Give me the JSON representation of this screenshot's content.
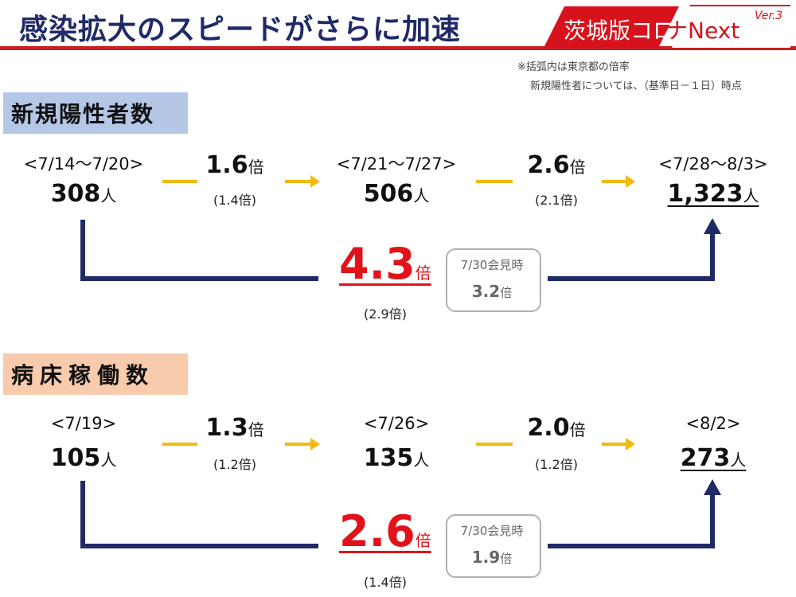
{
  "header": {
    "title": "感染拡大のスピードがさらに加速",
    "badge_red": "茨城版コロ",
    "badge_white": "ナNext",
    "badge_ver": "Ver.3",
    "note_line1": "※括弧内は東京都の倍率",
    "note_line2": "新規陽性者については、（基準日－１日）時点"
  },
  "colors": {
    "navy": "#1f2a66",
    "red": "#e3121a",
    "yellow": "#f2b90f",
    "sec1_bg": "#b4c7e7",
    "sec2_bg": "#f8cbad"
  },
  "sections": [
    {
      "label": "新規陽性者数",
      "periods": [
        "<7/14～7/20>",
        "<7/21～7/27>",
        "<7/28～8/3>"
      ],
      "values": [
        "308",
        "506",
        "1,323"
      ],
      "unit_person": "人",
      "ratios": [
        "1.6",
        "2.6"
      ],
      "ratio_unit": "倍",
      "ratio_subs": [
        "(1.4倍)",
        "(2.1倍)"
      ],
      "total_ratio": "4.3",
      "total_sub": "(2.9倍)",
      "bracket_label": "7/30会見時",
      "bracket_value": "3.2"
    },
    {
      "label": "病床稼働数",
      "periods": [
        "<7/19>",
        "<7/26>",
        "<8/2>"
      ],
      "values": [
        "105",
        "135",
        "273"
      ],
      "unit_person": "人",
      "ratios": [
        "1.3",
        "2.0"
      ],
      "ratio_unit": "倍",
      "ratio_subs": [
        "(1.2倍)",
        "(1.2倍)"
      ],
      "total_ratio": "2.6",
      "total_sub": "(1.4倍)",
      "bracket_label": "7/30会見時",
      "bracket_value": "1.9"
    }
  ]
}
